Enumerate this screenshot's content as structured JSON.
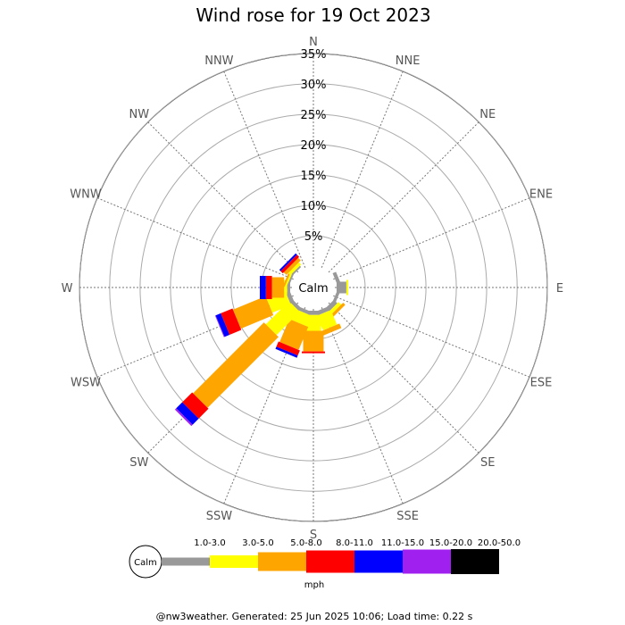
{
  "chart_data": {
    "type": "wind_rose",
    "title": "Wind rose for 19 Oct 2023",
    "footer": "@nw3weather. Generated: 25 Jun 2025 10:06; Load time: 0.22 s",
    "calm_label": "Calm",
    "unit_label": "mph",
    "radial_ticks": [
      "5%",
      "10%",
      "15%",
      "20%",
      "25%",
      "30%",
      "35%"
    ],
    "radial_values": [
      5,
      10,
      15,
      20,
      25,
      30,
      35
    ],
    "directions": [
      "N",
      "NNE",
      "NE",
      "ENE",
      "E",
      "ESE",
      "SE",
      "SSE",
      "S",
      "SSW",
      "SW",
      "WSW",
      "W",
      "WNW",
      "NW",
      "NNW"
    ],
    "bands": [
      {
        "label": "1.0-3.0",
        "color": "#999999"
      },
      {
        "label": "3.0-5.0",
        "color": "#ffff00"
      },
      {
        "label": "5.0-8.0",
        "color": "#ffa500"
      },
      {
        "label": "8.0-11.0",
        "color": "#ff0000"
      },
      {
        "label": "11.0-15.0",
        "color": "#0000ff"
      },
      {
        "label": "15.0-20.0",
        "color": "#a020f0"
      },
      {
        "label": "20.0-50.0",
        "color": "#000000"
      }
    ],
    "series": [
      {
        "direction": "N",
        "values": [
          0.0,
          0.0,
          0.0,
          0.0,
          0.0,
          0.0,
          0.0
        ]
      },
      {
        "direction": "NNE",
        "values": [
          0.0,
          0.0,
          0.0,
          0.0,
          0.0,
          0.0,
          0.0
        ]
      },
      {
        "direction": "NE",
        "values": [
          0.0,
          0.0,
          0.0,
          0.0,
          0.0,
          0.0,
          0.0
        ]
      },
      {
        "direction": "ENE",
        "values": [
          0.6,
          0.0,
          0.0,
          0.0,
          0.0,
          0.0,
          0.0
        ]
      },
      {
        "direction": "E",
        "values": [
          1.6,
          0.3,
          0.0,
          0.0,
          0.0,
          0.0,
          0.0
        ]
      },
      {
        "direction": "ESE",
        "values": [
          0.5,
          0.0,
          0.0,
          0.0,
          0.0,
          0.0,
          0.0
        ]
      },
      {
        "direction": "SE",
        "values": [
          0.8,
          0.6,
          0.5,
          0.0,
          0.0,
          0.0,
          0.0
        ]
      },
      {
        "direction": "SSE",
        "values": [
          0.7,
          2.6,
          0.8,
          0.0,
          0.0,
          0.0,
          0.0
        ]
      },
      {
        "direction": "S",
        "values": [
          0.7,
          2.6,
          3.4,
          0.3,
          0.0,
          0.0,
          0.0
        ]
      },
      {
        "direction": "SSW",
        "values": [
          0.6,
          1.9,
          4.1,
          0.9,
          0.4,
          0.0,
          0.0
        ]
      },
      {
        "direction": "SW",
        "values": [
          0.6,
          5.4,
          16.5,
          2.3,
          1.4,
          0.3,
          0.0
        ]
      },
      {
        "direction": "WSW",
        "values": [
          0.7,
          3.3,
          5.8,
          2.1,
          0.9,
          0.1,
          0.0
        ]
      },
      {
        "direction": "W",
        "values": [
          0.5,
          0.5,
          2.0,
          1.0,
          1.0,
          0.0,
          0.0
        ]
      },
      {
        "direction": "WNW",
        "values": [
          0.3,
          0.3,
          0.3,
          0.0,
          0.0,
          0.0,
          0.0
        ]
      },
      {
        "direction": "NW",
        "values": [
          0.3,
          0.5,
          0.6,
          0.5,
          0.3,
          0.0,
          0.0
        ]
      },
      {
        "direction": "NNW",
        "values": [
          0.0,
          0.0,
          0.0,
          0.0,
          0.0,
          0.0,
          0.0
        ]
      }
    ],
    "rmax_percent": 38.5
  }
}
